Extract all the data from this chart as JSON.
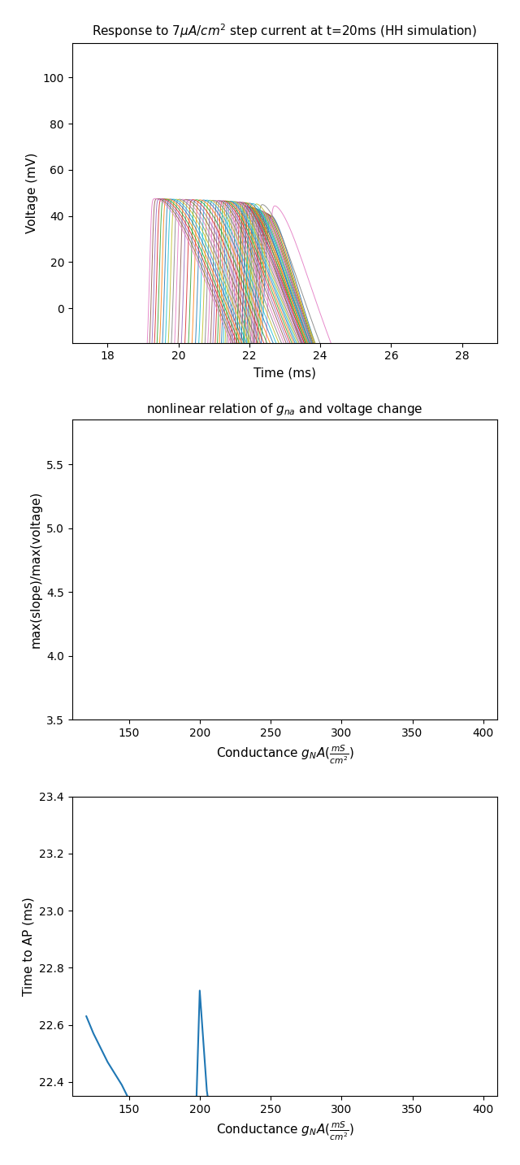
{
  "title1": "Response to $7\\mu A/cm^2$ step current at t=20ms (HH simulation)",
  "title2": "nonlinear relation of $g_{na}$ and voltage change",
  "ylabel1": "Voltage (mV)",
  "xlabel1": "Time (ms)",
  "ylabel2": "max(slope)/max(voltage)",
  "xlabel2": "Conductance $g_{NA}(\\frac{mS}{cm^2})$",
  "ylabel3": "Time to AP (ms)",
  "xlabel3": "Conductance $g_{NA}(\\frac{mS}{cm^2})$",
  "xlim1": [
    17,
    29
  ],
  "ylim1": [
    -15,
    115
  ],
  "xlim2": [
    110,
    410
  ],
  "ylim2": [
    3.5,
    5.85
  ],
  "xlim3": [
    110,
    410
  ],
  "ylim3": [
    22.35,
    23.4
  ],
  "gna_min": 120,
  "gna_max": 400,
  "gna_steps": 57,
  "bg_color": "#ffffff",
  "line_color": "#1f77b4"
}
